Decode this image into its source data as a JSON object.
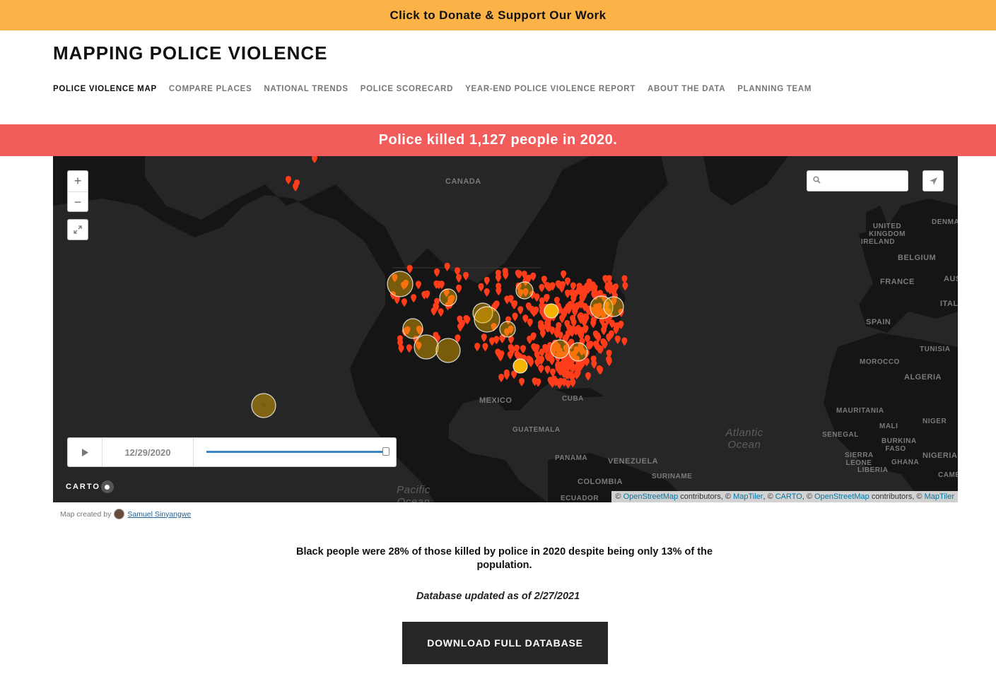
{
  "donate": {
    "label": "Click to Donate & Support Our Work"
  },
  "site": {
    "title": "MAPPING POLICE VIOLENCE"
  },
  "nav": {
    "items": [
      {
        "label": "POLICE VIOLENCE MAP",
        "active": true
      },
      {
        "label": "COMPARE PLACES"
      },
      {
        "label": "NATIONAL TRENDS"
      },
      {
        "label": "POLICE SCORECARD"
      },
      {
        "label": "YEAR-END POLICE VIOLENCE REPORT"
      },
      {
        "label": "ABOUT THE DATA"
      },
      {
        "label": "PLANNING TEAM"
      }
    ]
  },
  "banner": {
    "text": "Police killed 1,127 people in 2020."
  },
  "map": {
    "zoom_in": "+",
    "zoom_out": "−",
    "fullscreen_icon": "expand-icon",
    "search": {
      "value": "",
      "placeholder": "",
      "icon": "search-icon"
    },
    "locate_icon": "location-arrow-icon",
    "labels": {
      "canada": "CANADA",
      "mexico": "MEXICO",
      "cuba": "CUBA",
      "guatemala": "GUATEMALA",
      "panama": "PANAMA",
      "venezuela": "VENEZUELA",
      "colombia": "COLOMBIA",
      "ecuador": "ECUADOR",
      "suriname": "SURINAME",
      "united_kingdom": "UNITED KINGDOM",
      "ireland": "IRELAND",
      "denmark": "DENMARK",
      "belgium": "BELGIUM",
      "france": "FRANCE",
      "austria": "AUST",
      "italy": "ITAL",
      "spain": "SPAIN",
      "tunisia": "TUNISIA",
      "morocco": "MOROCCO",
      "algeria": "ALGERIA",
      "mauritania": "MAURITANIA",
      "mali": "MALI",
      "niger": "NIGER",
      "senegal": "SENEGAL",
      "burkina_faso": "BURKINA FASO",
      "sierra_leone": "SIERRA LEONE",
      "liberia": "LIBERIA",
      "ghana": "GHANA",
      "nigeria": "NIGERIA",
      "cameroon": "CAMER",
      "atlantic": "Atlantic Ocean",
      "pacific": "Pacific Ocean"
    },
    "timeline": {
      "play_icon": "play-icon",
      "date": "12/29/2020",
      "progress": 1.0
    },
    "carto_logo": "CARTO",
    "attribution": {
      "c1": "©",
      "osm": "OpenStreetMap",
      "contrib": "contributors, ©",
      "maptiler": "MapTiler",
      "sep": ", ©",
      "carto": "CARTO"
    },
    "colors": {
      "marker": "#ff3d1a",
      "cluster": "#f5b400",
      "background": "#262626",
      "land": "#151515"
    }
  },
  "credit": {
    "prefix": "Map created by",
    "author": "Samuel Sinyangwe"
  },
  "stat": {
    "text": "Black people were 28% of those killed by police in 2020 despite being only 13% of the population."
  },
  "updated": {
    "text": "Database updated as of 2/27/2021"
  },
  "download": {
    "label": "DOWNLOAD FULL DATABASE"
  }
}
